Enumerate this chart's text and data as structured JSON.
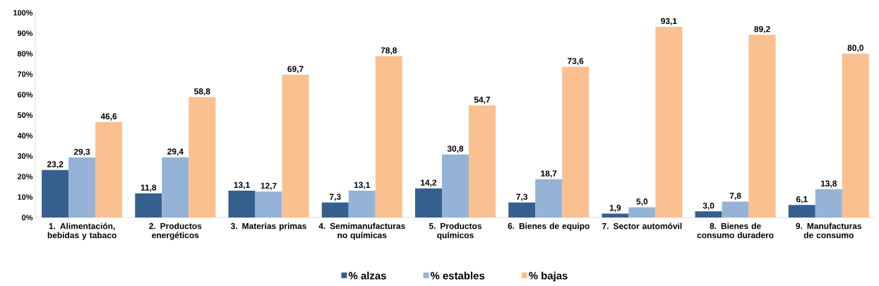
{
  "chart_data": {
    "type": "bar",
    "categories": [
      "1. Alimentación, bebidas y tabaco",
      "2. Productos energéticos",
      "3. Materias primas",
      "4. Semimanufacturas no químicas",
      "5. Productos químicos",
      "6. Bienes de equipo",
      "7. Sector automóvil",
      "8. Bienes de consumo duradero",
      "9. Manufacturas de consumo"
    ],
    "series": [
      {
        "name": "% alzas",
        "color": "#355f8d",
        "values": [
          23.2,
          11.8,
          13.1,
          7.3,
          14.2,
          7.3,
          1.9,
          3.0,
          6.1
        ],
        "value_labels": [
          "23,2",
          "11,8",
          "13,1",
          "7,3",
          "14,2",
          "7,3",
          "1,9",
          "3,0",
          "6,1"
        ]
      },
      {
        "name": "% estables",
        "color": "#95b3d7",
        "values": [
          29.3,
          29.4,
          12.7,
          13.1,
          30.8,
          18.7,
          5.0,
          7.8,
          13.8
        ],
        "value_labels": [
          "29,3",
          "29,4",
          "12,7",
          "13,1",
          "30,8",
          "18,7",
          "5,0",
          "7,8",
          "13,8"
        ]
      },
      {
        "name": "% bajas",
        "color": "#fac090",
        "values": [
          46.6,
          58.8,
          69.7,
          78.8,
          54.7,
          73.6,
          93.1,
          89.2,
          80.0
        ],
        "value_labels": [
          "46,6",
          "58,8",
          "69,7",
          "78,8",
          "54,7",
          "73,6",
          "93,1",
          "89,2",
          "80,0"
        ]
      }
    ],
    "ylim": [
      0,
      100
    ],
    "yticks": [
      {
        "value": 0,
        "label": "0%"
      },
      {
        "value": 10,
        "label": "10%"
      },
      {
        "value": 20,
        "label": "20%"
      },
      {
        "value": 30,
        "label": "30%"
      },
      {
        "value": 40,
        "label": "40%"
      },
      {
        "value": 50,
        "label": "50%"
      },
      {
        "value": 60,
        "label": "60%"
      },
      {
        "value": 70,
        "label": "70%"
      },
      {
        "value": 80,
        "label": "80%"
      },
      {
        "value": 90,
        "label": "90%"
      },
      {
        "value": 100,
        "label": "100%"
      }
    ],
    "grid": false,
    "legend": "bottom"
  }
}
